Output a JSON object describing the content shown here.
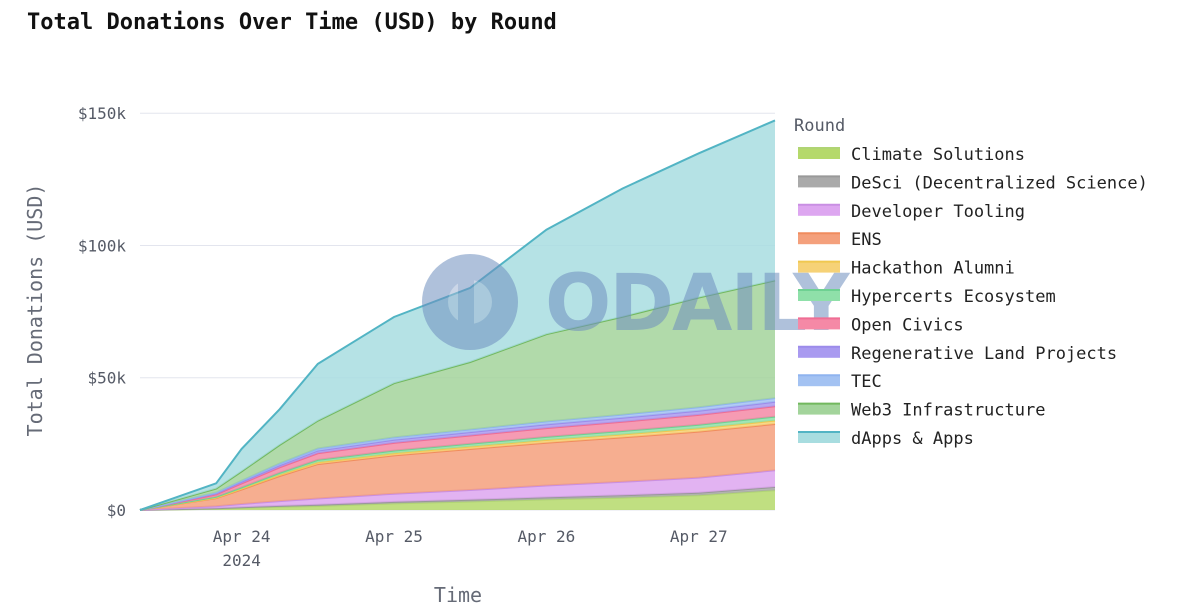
{
  "chart_data": {
    "type": "area",
    "stacked": true,
    "title": "Total Donations Over Time (USD) by Round",
    "xlabel": "Time",
    "ylabel": "Total Donations (USD)",
    "x_range": [
      "2024-04-23 08:00",
      "2024-04-27 12:00"
    ],
    "ylim": [
      0,
      155000
    ],
    "x_ticks": [
      {
        "date": "2024-04-24",
        "label": "Apr 24",
        "sublabel": "2024"
      },
      {
        "date": "2024-04-25",
        "label": "Apr 25",
        "sublabel": ""
      },
      {
        "date": "2024-04-26",
        "label": "Apr 26",
        "sublabel": ""
      },
      {
        "date": "2024-04-27",
        "label": "Apr 27",
        "sublabel": ""
      }
    ],
    "y_ticks": [
      {
        "value": 0,
        "label": "$0"
      },
      {
        "value": 50000,
        "label": "$50k"
      },
      {
        "value": 100000,
        "label": "$100k"
      },
      {
        "value": 150000,
        "label": "$150k"
      }
    ],
    "grid": true,
    "legend_title": "Round",
    "legend_position": "right",
    "watermark": "ODAILY",
    "x": [
      "2024-04-23 08:00",
      "2024-04-23 20:00",
      "2024-04-24 00:00",
      "2024-04-24 06:00",
      "2024-04-24 12:00",
      "2024-04-25 00:00",
      "2024-04-25 12:00",
      "2024-04-26 00:00",
      "2024-04-26 12:00",
      "2024-04-27 00:00",
      "2024-04-27 12:00"
    ],
    "series": [
      {
        "name": "Climate Solutions",
        "color": "#b5d96b",
        "values": [
          0,
          500,
          800,
          1200,
          1500,
          2500,
          3200,
          4000,
          4700,
          5600,
          7500
        ]
      },
      {
        "name": "DeSci (Decentralized Science)",
        "color": "#aaaaaa",
        "values": [
          0,
          150,
          250,
          350,
          450,
          550,
          650,
          750,
          850,
          950,
          1200
        ]
      },
      {
        "name": "Developer Tooling",
        "color": "#dda6f0",
        "values": [
          0,
          800,
          1200,
          1800,
          2400,
          3100,
          3700,
          4500,
          5100,
          5700,
          6300
        ]
      },
      {
        "name": "ENS",
        "color": "#f4a07c",
        "values": [
          0,
          3000,
          5500,
          9500,
          13000,
          14500,
          15500,
          16200,
          16800,
          17400,
          17500
        ]
      },
      {
        "name": "Hackathon Alumni",
        "color": "#f6d277",
        "values": [
          0,
          200,
          300,
          500,
          700,
          800,
          900,
          1000,
          1100,
          1200,
          1300
        ]
      },
      {
        "name": "Hypercerts Ecosystem",
        "color": "#8fe0a9",
        "values": [
          0,
          350,
          500,
          700,
          900,
          1000,
          1100,
          1200,
          1300,
          1400,
          1500
        ]
      },
      {
        "name": "Open Civics",
        "color": "#f589a6",
        "values": [
          0,
          900,
          1500,
          2100,
          2500,
          2900,
          3100,
          3300,
          3500,
          3700,
          3900
        ]
      },
      {
        "name": "Regenerative Land Projects",
        "color": "#a99af0",
        "values": [
          0,
          400,
          600,
          800,
          1000,
          1200,
          1300,
          1400,
          1500,
          1600,
          1700
        ]
      },
      {
        "name": "TEC",
        "color": "#a3c2f2",
        "values": [
          0,
          300,
          450,
          650,
          800,
          900,
          1000,
          1100,
          1200,
          1300,
          1400
        ]
      },
      {
        "name": "Web3 Infrastructure",
        "color": "#a3d49b",
        "values": [
          0,
          1500,
          3500,
          7000,
          10500,
          20500,
          25500,
          33000,
          37000,
          41500,
          44500
        ]
      },
      {
        "name": "dApps & Apps",
        "color": "#a8dde0",
        "values": [
          0,
          2000,
          8500,
          13500,
          21500,
          25000,
          28000,
          39500,
          48500,
          54500,
          60500
        ]
      }
    ],
    "series_edge_colors": [
      "#b0d474",
      "#999999",
      "#c98fe3",
      "#f08c5e",
      "#f0c850",
      "#6ed192",
      "#ef6d94",
      "#9c8bea",
      "#8fb4ef",
      "#72b85e",
      "#52b4c4"
    ]
  }
}
